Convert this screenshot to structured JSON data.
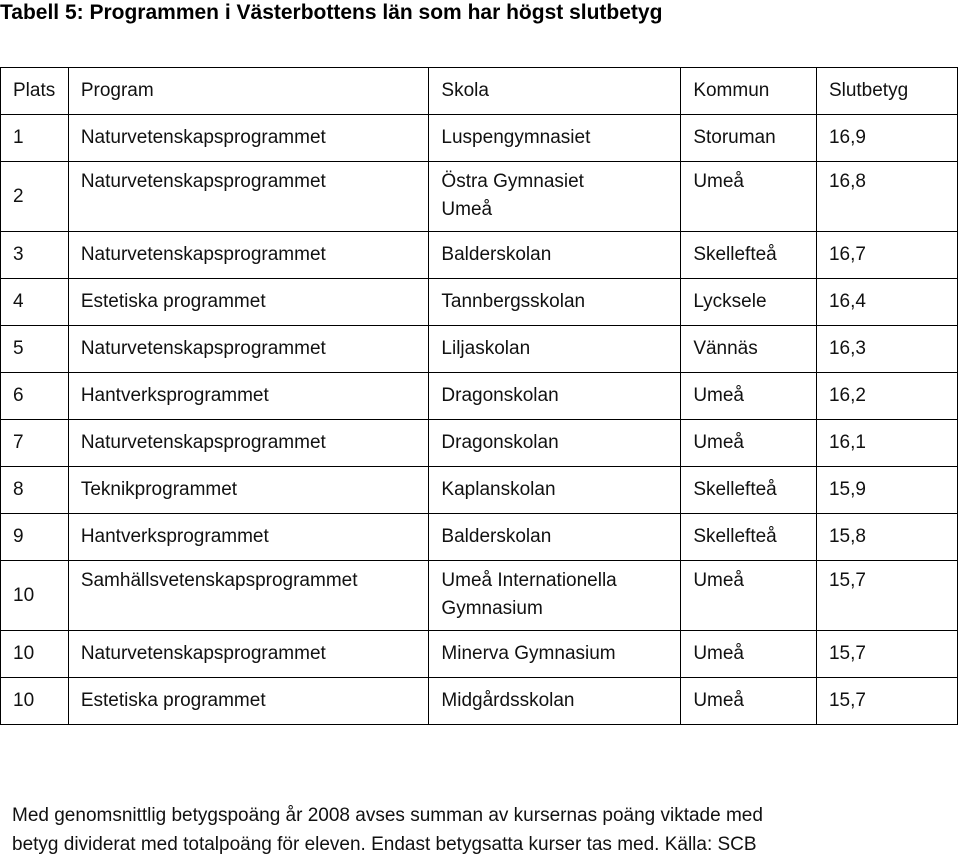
{
  "title": "Tabell 5: Programmen i Västerbottens län som har högst slutbetyg",
  "table": {
    "headers": [
      "Plats",
      "Program",
      "Skola",
      "Kommun",
      "Slutbetyg"
    ],
    "rows": [
      {
        "plats": "1",
        "program": "Naturvetenskapsprogrammet",
        "skola": [
          "Luspengymnasiet"
        ],
        "kommun": "Storuman",
        "slutbetyg": "16,9"
      },
      {
        "plats": "2",
        "program": "Naturvetenskapsprogrammet",
        "skola": [
          "Östra Gymnasiet",
          "Umeå"
        ],
        "kommun": "Umeå",
        "slutbetyg": "16,8"
      },
      {
        "plats": "3",
        "program": "Naturvetenskapsprogrammet",
        "skola": [
          "Balderskolan"
        ],
        "kommun": "Skellefteå",
        "slutbetyg": "16,7"
      },
      {
        "plats": "4",
        "program": "Estetiska programmet",
        "skola": [
          "Tannbergsskolan"
        ],
        "kommun": "Lycksele",
        "slutbetyg": "16,4"
      },
      {
        "plats": "5",
        "program": "Naturvetenskapsprogrammet",
        "skola": [
          "Liljaskolan"
        ],
        "kommun": "Vännäs",
        "slutbetyg": "16,3"
      },
      {
        "plats": "6",
        "program": "Hantverksprogrammet",
        "skola": [
          "Dragonskolan"
        ],
        "kommun": "Umeå",
        "slutbetyg": "16,2"
      },
      {
        "plats": "7",
        "program": "Naturvetenskapsprogrammet",
        "skola": [
          "Dragonskolan"
        ],
        "kommun": "Umeå",
        "slutbetyg": "16,1"
      },
      {
        "plats": "8",
        "program": "Teknikprogrammet",
        "skola": [
          "Kaplanskolan"
        ],
        "kommun": "Skellefteå",
        "slutbetyg": "15,9"
      },
      {
        "plats": "9",
        "program": "Hantverksprogrammet",
        "skola": [
          "Balderskolan"
        ],
        "kommun": "Skellefteå",
        "slutbetyg": "15,8"
      },
      {
        "plats": "10",
        "program": "Samhällsvetenskapsprogrammet",
        "skola": [
          "Umeå Internationella",
          "Gymnasium"
        ],
        "kommun": "Umeå",
        "slutbetyg": "15,7"
      },
      {
        "plats": "10",
        "program": "Naturvetenskapsprogrammet",
        "skola": [
          "Minerva Gymnasium"
        ],
        "kommun": "Umeå",
        "slutbetyg": "15,7"
      },
      {
        "plats": "10",
        "program": "Estetiska programmet",
        "skola": [
          "Midgårdsskolan"
        ],
        "kommun": "Umeå",
        "slutbetyg": "15,7"
      }
    ]
  },
  "footnote": {
    "line1": "Med genomsnittlig betygspoäng år 2008 avses summan av kursernas poäng viktade med",
    "line2": "betyg dividerat med totalpoäng för eleven. Endast betygsatta kurser tas med. Källa: SCB"
  }
}
